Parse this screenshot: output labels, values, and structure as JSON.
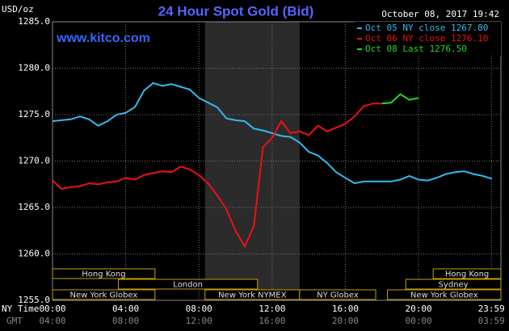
{
  "chart_data": {
    "type": "line",
    "title": "24 Hour Spot Gold (Bid)",
    "site": "www.kitco.com",
    "timestamp": "October 08, 2017 19:42",
    "ylabel": "USD/oz",
    "xlabel": "NY Time",
    "x2label": "GMT",
    "xlim": [
      0,
      24.5
    ],
    "ylim": [
      1255,
      1285
    ],
    "xticks": [
      {
        "value": 0,
        "label": "00:00"
      },
      {
        "value": 4,
        "label": "04:00"
      },
      {
        "value": 8,
        "label": "08:00"
      },
      {
        "value": 12,
        "label": "12:00"
      },
      {
        "value": 16,
        "label": "16:00"
      },
      {
        "value": 20,
        "label": "20:00"
      },
      {
        "value": 23.98,
        "label": "23:59"
      }
    ],
    "gmt_labels": [
      "04:00",
      "08:00",
      "12:00",
      "16:00",
      "20:00",
      "00:00",
      "03:59"
    ],
    "yticks": [
      {
        "value": 1255,
        "label": "1255.0"
      },
      {
        "value": 1260,
        "label": "1260.0"
      },
      {
        "value": 1265,
        "label": "1265.0"
      },
      {
        "value": 1270,
        "label": "1270.0"
      },
      {
        "value": 1275,
        "label": "1275.0"
      },
      {
        "value": 1280,
        "label": "1280.0"
      },
      {
        "value": 1285,
        "label": "1285.0"
      }
    ],
    "grid": true,
    "nymex_shade": [
      8.33,
      13.5
    ],
    "series": [
      {
        "name": "Oct 05 NY close 1267.80",
        "color": "#33bbee",
        "x": [
          0,
          0.5,
          1,
          1.5,
          2,
          2.5,
          3,
          3.5,
          4,
          4.5,
          5,
          5.5,
          6,
          6.5,
          7,
          7.5,
          8,
          8.5,
          9,
          9.5,
          10,
          10.5,
          11,
          11.5,
          12,
          12.5,
          13,
          13.5,
          14,
          14.5,
          15,
          15.5,
          16,
          16.5,
          17,
          17.5,
          18,
          18.5,
          19,
          19.5,
          20,
          20.5,
          21,
          21.5,
          22,
          22.5,
          23,
          23.5,
          24
        ],
        "values": [
          1274.3,
          1274.4,
          1274.5,
          1274.8,
          1274.5,
          1273.8,
          1274.3,
          1275.0,
          1275.2,
          1275.8,
          1277.6,
          1278.4,
          1278.1,
          1278.3,
          1278.0,
          1277.7,
          1276.8,
          1276.3,
          1275.8,
          1274.6,
          1274.4,
          1274.3,
          1273.5,
          1273.3,
          1273.0,
          1272.7,
          1272.6,
          1272.0,
          1271.0,
          1270.6,
          1269.8,
          1268.8,
          1268.2,
          1267.6,
          1267.8,
          1267.8,
          1267.8,
          1267.8,
          1268.0,
          1268.4,
          1268.0,
          1267.9,
          1268.2,
          1268.6,
          1268.8,
          1268.9,
          1268.6,
          1268.4,
          1268.1
        ]
      },
      {
        "name": "Oct 06 NY close 1276.10",
        "color": "#ee1111",
        "x": [
          0,
          0.5,
          1,
          1.5,
          2,
          2.5,
          3,
          3.5,
          4,
          4.5,
          5,
          5.5,
          6,
          6.5,
          7,
          7.5,
          8,
          8.5,
          9,
          9.5,
          10,
          10.5,
          11,
          11.5,
          12,
          12.5,
          13,
          13.5,
          14,
          14.5,
          15,
          15.5,
          16,
          16.5,
          17,
          17.5,
          18
        ],
        "values": [
          1267.9,
          1267.0,
          1267.2,
          1267.3,
          1267.6,
          1267.5,
          1267.7,
          1267.8,
          1268.2,
          1268.0,
          1268.5,
          1268.7,
          1268.9,
          1268.8,
          1269.4,
          1269.1,
          1268.5,
          1267.6,
          1266.3,
          1264.8,
          1262.5,
          1260.8,
          1263.0,
          1271.5,
          1272.5,
          1274.3,
          1273.0,
          1273.2,
          1272.8,
          1273.8,
          1273.2,
          1273.6,
          1274.0,
          1274.8,
          1275.9,
          1276.2,
          1276.2
        ]
      },
      {
        "name": "Oct 08 Last 1276.50",
        "color": "#22dd22",
        "x": [
          18,
          18.5,
          19,
          19.5,
          20
        ],
        "values": [
          1276.2,
          1276.3,
          1277.2,
          1276.6,
          1276.8
        ]
      }
    ],
    "session_rows": [
      [
        {
          "label": "Hong Kong",
          "start": 0,
          "end": 5.6
        },
        {
          "label": "Hong Kong",
          "start": 20.8,
          "end": 24.5
        }
      ],
      [
        {
          "label": "London",
          "start": 3.6,
          "end": 11.2
        },
        {
          "label": "Sydney",
          "start": 19.3,
          "end": 24.5
        }
      ],
      [
        {
          "label": "New York Globex",
          "start": 0,
          "end": 5.6
        },
        {
          "label": "New York NYMEX",
          "start": 8.33,
          "end": 13.5
        },
        {
          "label": "NY Globex",
          "start": 13.5,
          "end": 17.66
        },
        {
          "label": "New York Globex",
          "start": 18.3,
          "end": 24.5
        }
      ]
    ]
  }
}
